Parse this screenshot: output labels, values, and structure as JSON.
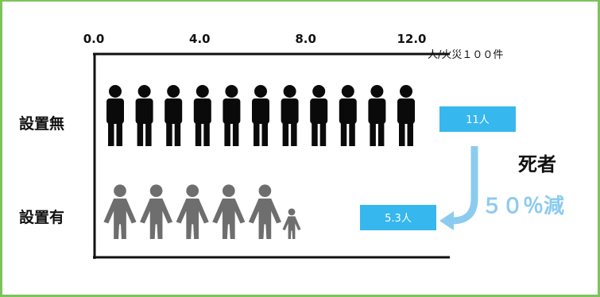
{
  "chart_data": {
    "type": "bar",
    "x_axis": {
      "tick_labels": [
        "0.0",
        "4.0",
        "8.0",
        "12.0"
      ],
      "ticks": [
        0,
        4,
        8,
        12
      ],
      "unit": "人/火災１００件",
      "range": [
        0,
        12
      ]
    },
    "categories": [
      "設置無",
      "設置有"
    ],
    "values": [
      11,
      5.3
    ],
    "data_labels": [
      "11人",
      "5.3人"
    ],
    "annotation": {
      "line1": "死者",
      "line2": "５０％減"
    },
    "colors": {
      "no_device": "#0a0a0a",
      "with_device": "#6e6e6e",
      "label_box": "#36b7ee",
      "arrow": "#8ccbf0",
      "border": "#7dc35b"
    }
  }
}
